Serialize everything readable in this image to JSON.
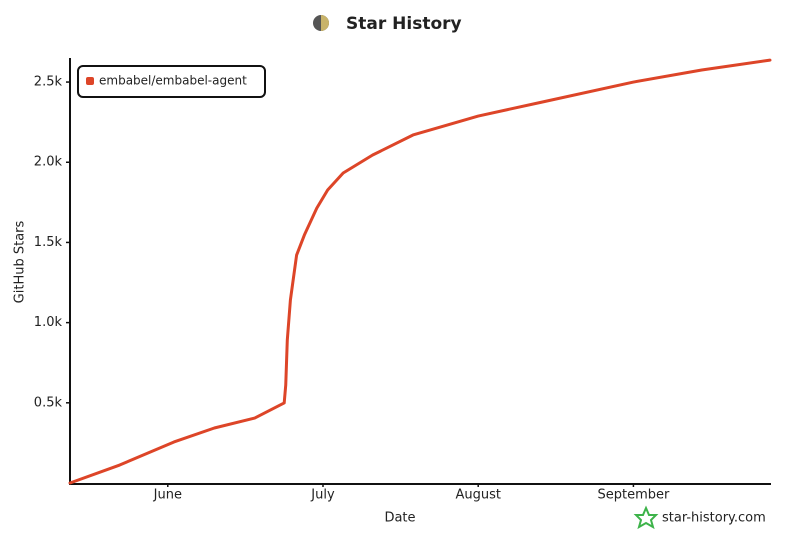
{
  "chart_data": {
    "type": "line",
    "title": "Star History",
    "x_label": "Date",
    "y_label": "GitHub Stars",
    "watermark": "star-history.com",
    "xlim": [
      5.37,
      9.88
    ],
    "xticks": [
      {
        "value": 6,
        "label": "June"
      },
      {
        "value": 7,
        "label": "July"
      },
      {
        "value": 8,
        "label": "August"
      },
      {
        "value": 9,
        "label": "September"
      }
    ],
    "ylim": [
      0,
      2650
    ],
    "yticks": [
      {
        "value": 500,
        "label": "0.5k"
      },
      {
        "value": 1000,
        "label": "1.0k"
      },
      {
        "value": 1500,
        "label": "1.5k"
      },
      {
        "value": 2000,
        "label": "2.0k"
      },
      {
        "value": 2500,
        "label": "2.5k"
      }
    ],
    "legend_position": "top-left",
    "series": [
      {
        "name": "embabel/embabel-agent",
        "color": "#dd4528",
        "x": [
          5.37,
          5.69,
          6.04,
          6.3,
          6.56,
          6.75,
          6.76,
          6.77,
          6.79,
          6.83,
          6.88,
          6.96,
          7.03,
          7.13,
          7.32,
          7.58,
          8.0,
          8.41,
          9.0,
          9.44,
          9.88
        ],
        "values": [
          0,
          112,
          256,
          343,
          405,
          499,
          611,
          891,
          1141,
          1421,
          1546,
          1714,
          1827,
          1933,
          2045,
          2170,
          2288,
          2375,
          2500,
          2575,
          2637
        ]
      }
    ]
  }
}
